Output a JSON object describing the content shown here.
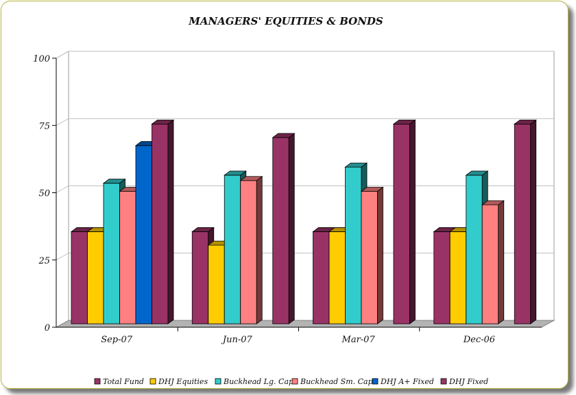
{
  "chart_data": {
    "type": "bar",
    "title": "MANAGERS' EQUITIES & BONDS",
    "categories": [
      "Sep-07",
      "Jun-07",
      "Mar-07",
      "Dec-06"
    ],
    "ylim": [
      0,
      100
    ],
    "yticks": [
      "0",
      "25",
      "50",
      "75",
      "100"
    ],
    "grid": true,
    "legend_position": "bottom",
    "series": [
      {
        "name": "Total Fund",
        "color": "#993366",
        "values": [
          35,
          35,
          35,
          35
        ]
      },
      {
        "name": "DHJ Equities",
        "color": "#ffcc00",
        "values": [
          35,
          30,
          35,
          35
        ]
      },
      {
        "name": "Buckhead Lg. Cap",
        "color": "#33cccc",
        "values": [
          53,
          56,
          59,
          56
        ]
      },
      {
        "name": "Buckhead Sm. Cap",
        "color": "#ff8080",
        "values": [
          50,
          54,
          50,
          45
        ]
      },
      {
        "name": "DHJ A+ Fixed",
        "color": "#0066cc",
        "values": [
          67,
          null,
          null,
          null
        ]
      },
      {
        "name": "DHJ Fixed",
        "color": "#993366",
        "values": [
          75,
          70,
          75,
          75
        ]
      }
    ]
  }
}
